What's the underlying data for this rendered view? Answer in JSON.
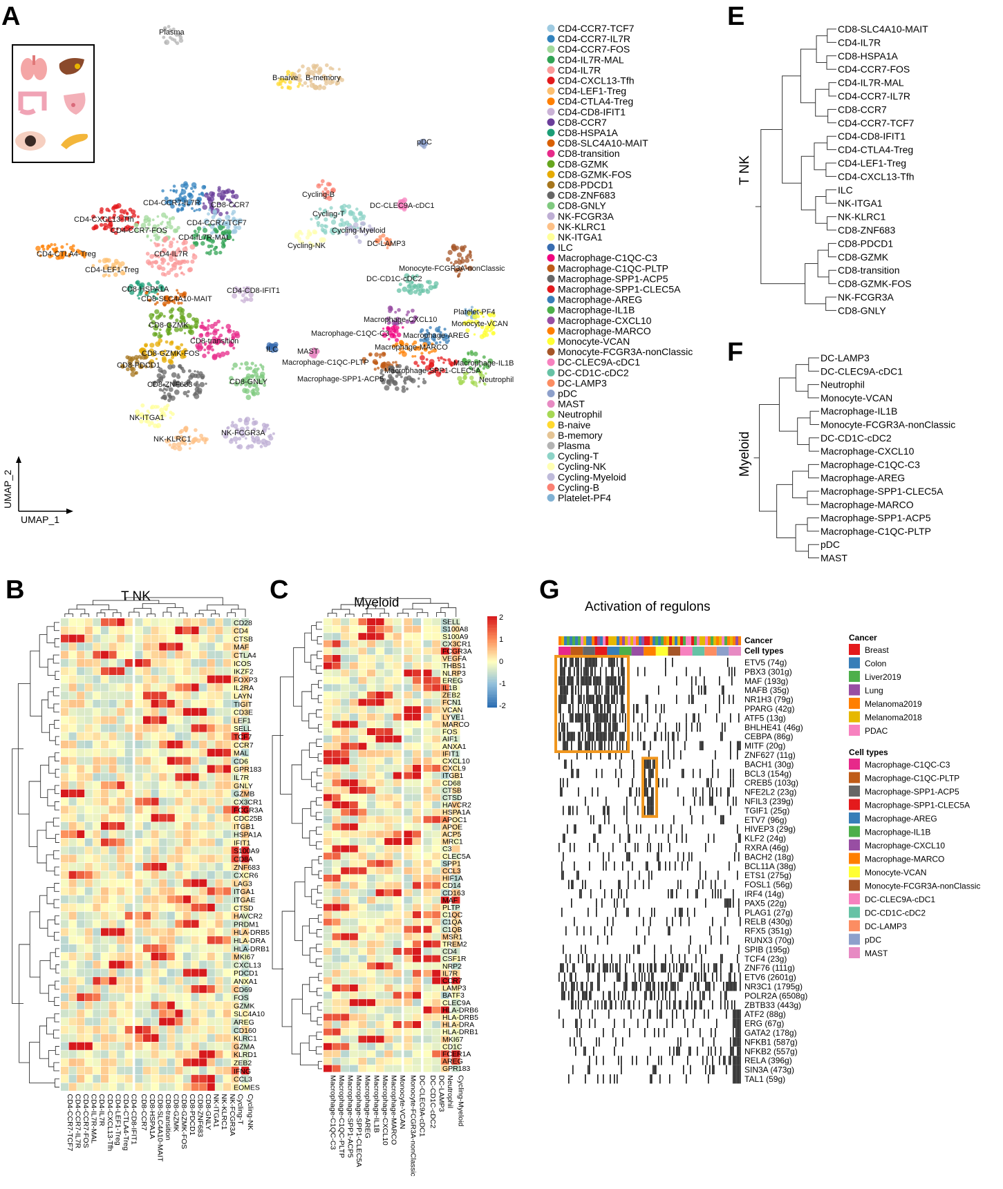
{
  "panels": {
    "A": {
      "letter": "A",
      "axis_x": "UMAP_1",
      "axis_y": "UMAP_2",
      "inset_icons": [
        "lung-icon",
        "liver-icon",
        "colon-icon",
        "breast-icon",
        "melanoma-icon",
        "pancreas-icon"
      ]
    },
    "B": {
      "letter": "B",
      "title": "T NK"
    },
    "C": {
      "letter": "C",
      "title": "Myeloid"
    },
    "E": {
      "letter": "E",
      "group": "T NK"
    },
    "F": {
      "letter": "F",
      "group": "Myeloid"
    },
    "G": {
      "letter": "G",
      "title": "Activation of regulons"
    }
  },
  "chart_data": [
    {
      "panel": "A",
      "type": "scatter",
      "title": "",
      "xlabel": "UMAP_1",
      "ylabel": "UMAP_2",
      "legend": [
        {
          "name": "CD4-CCR7-TCF7",
          "color": "#9ecae1"
        },
        {
          "name": "CD4-CCR7-IL7R",
          "color": "#3182bd"
        },
        {
          "name": "CD4-CCR7-FOS",
          "color": "#a1d99b"
        },
        {
          "name": "CD4-IL7R-MAL",
          "color": "#31a354"
        },
        {
          "name": "CD4-IL7R",
          "color": "#fb9a99"
        },
        {
          "name": "CD4-CXCL13-Tfh",
          "color": "#e31a1c"
        },
        {
          "name": "CD4-LEF1-Treg",
          "color": "#fdbf6f"
        },
        {
          "name": "CD4-CTLA4-Treg",
          "color": "#ff7f00"
        },
        {
          "name": "CD4-CD8-IFIT1",
          "color": "#cab2d6"
        },
        {
          "name": "CD8-CCR7",
          "color": "#6a3d9a"
        },
        {
          "name": "CD8-HSPA1A",
          "color": "#1b9e77"
        },
        {
          "name": "CD8-SLC4A10-MAIT",
          "color": "#d95f02"
        },
        {
          "name": "CD8-transition",
          "color": "#e7298a"
        },
        {
          "name": "CD8-GZMK",
          "color": "#66a61e"
        },
        {
          "name": "CD8-GZMK-FOS",
          "color": "#e6ab02"
        },
        {
          "name": "CD8-PDCD1",
          "color": "#a6761d"
        },
        {
          "name": "CD8-ZNF683",
          "color": "#666666"
        },
        {
          "name": "CD8-GNLY",
          "color": "#7fc97f"
        },
        {
          "name": "NK-FCGR3A",
          "color": "#beaed4"
        },
        {
          "name": "NK-KLRC1",
          "color": "#fdc086"
        },
        {
          "name": "NK-ITGA1",
          "color": "#ffff99"
        },
        {
          "name": "ILC",
          "color": "#386cb0"
        },
        {
          "name": "Macrophage-C1QC-C3",
          "color": "#f0027f"
        },
        {
          "name": "Macrophage-C1QC-PLTP",
          "color": "#bf5b17"
        },
        {
          "name": "Macrophage-SPP1-ACP5",
          "color": "#666666"
        },
        {
          "name": "Macrophage-SPP1-CLEC5A",
          "color": "#e41a1c"
        },
        {
          "name": "Macrophage-AREG",
          "color": "#377eb8"
        },
        {
          "name": "Macrophage-IL1B",
          "color": "#4daf4a"
        },
        {
          "name": "Macrophage-CXCL10",
          "color": "#984ea3"
        },
        {
          "name": "Macrophage-MARCO",
          "color": "#ff7f00"
        },
        {
          "name": "Monocyte-VCAN",
          "color": "#ffff33"
        },
        {
          "name": "Monocyte-FCGR3A-nonClassic",
          "color": "#a65628"
        },
        {
          "name": "DC-CLEC9A-cDC1",
          "color": "#f781bf"
        },
        {
          "name": "DC-CD1C-cDC2",
          "color": "#66c2a5"
        },
        {
          "name": "DC-LAMP3",
          "color": "#fc8d62"
        },
        {
          "name": "pDC",
          "color": "#8da0cb"
        },
        {
          "name": "MAST",
          "color": "#e78ac3"
        },
        {
          "name": "Neutrophil",
          "color": "#a6d854"
        },
        {
          "name": "B-naive",
          "color": "#ffd92f"
        },
        {
          "name": "B-memory",
          "color": "#e5c494"
        },
        {
          "name": "Plasma",
          "color": "#b3b3b3"
        },
        {
          "name": "Cycling-T",
          "color": "#8dd3c7"
        },
        {
          "name": "Cycling-NK",
          "color": "#ffffb3"
        },
        {
          "name": "Cycling-Myeloid",
          "color": "#bebada"
        },
        {
          "name": "Cycling-B",
          "color": "#fb8072"
        },
        {
          "name": "Platelet-PF4",
          "color": "#80b1d3"
        }
      ],
      "cluster_labels": [
        "Plasma",
        "B-naive",
        "B-memory",
        "pDC",
        "CD4-CCR7-IL7R",
        "CD8-CCR7",
        "CD4-CXCL13-Tfh",
        "CD4-CCR7-TCF7",
        "CD4-CCR7-FOS",
        "CD4-IL7R-MAL",
        "CD4-CTLA4-Treg",
        "CD4-IL7R",
        "CD4-LEF1-Treg",
        "CD8-HSPA1A",
        "CD8-SLC4A10-MAIT",
        "CD4-CD8-IFIT1",
        "CD8-GZMK",
        "CD8-transition",
        "CD8-GZMK-FOS",
        "CD8-PDCD1",
        "CD8-ZNF683",
        "CD8-GNLY",
        "NK-ITGA1",
        "NK-KLRC1",
        "NK-FCGR3A",
        "ILC",
        "MAST",
        "Cycling-B",
        "DC-CLEC9A-cDC1",
        "Cycling-T",
        "Cycling-Myeloid",
        "Cycling-NK",
        "DC-LAMP3",
        "Monocyte-FCGR3A-nonClassic",
        "DC-CD1C-cDC2",
        "Platelet-PF4",
        "Macrophage-CXCL10",
        "Monocyte-VCAN",
        "Macrophage-C1QC-C3",
        "Macrophage-AREG",
        "Macrophage-MARCO",
        "Macrophage-C1QC-PLTP",
        "Macrophage-IL1B",
        "Macrophage-SPP1-CLEC5A",
        "Neutrophil",
        "Macrophage-SPP1-ACP5"
      ]
    },
    {
      "panel": "B",
      "type": "heatmap",
      "title": "T NK",
      "columns": [
        "CD4-CCR7-TCF7",
        "CD4-CCR7-IL7R",
        "CD4-CCR7-FOS",
        "CD4-IL7R-MAL",
        "CD4-IL7R",
        "CD4-CXCL13-Tfh",
        "CD4-LEF1-Treg",
        "CD4-CTLA4-Treg",
        "CD4-CD8-IFIT1",
        "CD8-CCR7",
        "CD8-HSPA1A",
        "CD8-SLC4A10-MAIT",
        "CD8-transition",
        "CD8-GZMK",
        "CD8-GZMK-FOS",
        "CD8-PDCD1",
        "CD8-ZNF683",
        "CD8-GNLY",
        "NK-ITGA1",
        "NK-KLRC1",
        "NK-FCGR3A",
        "Cycling-T",
        "Cycling-NK"
      ],
      "rows": [
        "CD28",
        "CD4",
        "CTSB",
        "MAF",
        "CTLA4",
        "ICOS",
        "IKZF2",
        "FOXP3",
        "IL2RA",
        "LAYN",
        "TIGIT",
        "CD3E",
        "LEF1",
        "SELL",
        "TCF7",
        "CCR7",
        "MAL",
        "CD6",
        "GPR183",
        "IL7R",
        "GNLY",
        "GZMB",
        "CX3CR1",
        "FCGR3A",
        "CDC25B",
        "ITGB1",
        "HSPA1A",
        "IFIT1",
        "S100A9",
        "CD8A",
        "ZNF683",
        "CXCR6",
        "LAG3",
        "ITGA1",
        "ITGAE",
        "CTSD",
        "HAVCR2",
        "PRDM1",
        "HLA-DRB5",
        "HLA-DRA",
        "HLA-DRB1",
        "MKI67",
        "CXCL13",
        "PDCD1",
        "ANXA1",
        "CD69",
        "FOS",
        "GZMK",
        "SLC4A10",
        "AREG",
        "CD160",
        "KLRC1",
        "GZMA",
        "KLRD1",
        "ZEB2",
        "IFNG",
        "CCL3",
        "EOMES"
      ]
    },
    {
      "panel": "C",
      "type": "heatmap",
      "title": "Myeloid",
      "columns": [
        "Macrophage-C1QC-C3",
        "Macrophage-C1QC-PLTP",
        "Macrophage-SPP1-ACP5",
        "Macrophage-SPP1-CLEC5A",
        "Macrophage-AREG",
        "Macrophage-IL1B",
        "Macrophage-CXCL10",
        "Macrophage-MARCO",
        "Monocyte-VCAN",
        "Monocyte-FCGR3A-nonClassic",
        "DC-CLEC9A-cDC1",
        "DC-CD1C-cDC2",
        "DC-LAMP3",
        "Neutrophil",
        "Cycling-Myeloid"
      ],
      "rows": [
        "SELL",
        "S100A8",
        "S100A9",
        "CX3CR1",
        "FCGR3A",
        "VEGFA",
        "THBS1",
        "NLRP3",
        "EREG",
        "IL1B",
        "ZEB2",
        "FCN1",
        "VCAN",
        "LYVE1",
        "MARCO",
        "FOS",
        "AIF1",
        "ANXA1",
        "IFIT1",
        "CXCL10",
        "CXCL9",
        "ITGB1",
        "CD68",
        "CTSB",
        "CTSD",
        "HAVCR2",
        "HSPA1A",
        "APOC1",
        "APOE",
        "ACP5",
        "MRC1",
        "C3",
        "CLEC5A",
        "SPP1",
        "CCL3",
        "HIF1A",
        "CD14",
        "CD163",
        "MAF",
        "PLTP",
        "C1QC",
        "C1QA",
        "C1QB",
        "MSR1",
        "TREM2",
        "CD4",
        "CSF1R",
        "NRP2",
        "IL7R",
        "CCR7",
        "LAMP3",
        "BATF3",
        "CLEC9A",
        "HLA-DRB6",
        "HLA-DRB5",
        "HLA-DRA",
        "HLA-DRB1",
        "MKI67",
        "CD1C",
        "FCER1A",
        "AREG",
        "GPR183"
      ],
      "colorbar": {
        "ticks": [
          "2",
          "1",
          "0",
          "-1",
          "-2"
        ],
        "range": [
          -2,
          2
        ]
      }
    },
    {
      "panel": "E",
      "type": "dendrogram",
      "group_label": "T NK",
      "leaves": [
        "CD8-SLC4A10-MAIT",
        "CD4-IL7R",
        "CD8-HSPA1A",
        "CD4-CCR7-FOS",
        "CD4-IL7R-MAL",
        "CD4-CCR7-IL7R",
        "CD8-CCR7",
        "CD4-CCR7-TCF7",
        "CD4-CD8-IFIT1",
        "CD4-CTLA4-Treg",
        "CD4-LEF1-Treg",
        "CD4-CXCL13-Tfh",
        "ILC",
        "NK-ITGA1",
        "NK-KLRC1",
        "CD8-ZNF683",
        "CD8-PDCD1",
        "CD8-GZMK",
        "CD8-transition",
        "CD8-GZMK-FOS",
        "NK-FCGR3A",
        "CD8-GNLY"
      ]
    },
    {
      "panel": "F",
      "type": "dendrogram",
      "group_label": "Myeloid",
      "leaves": [
        "DC-LAMP3",
        "DC-CLEC9A-cDC1",
        "Neutrophil",
        "Monocyte-VCAN",
        "Macrophage-IL1B",
        "Monocyte-FCGR3A-nonClassic",
        "DC-CD1C-cDC2",
        "Macrophage-CXCL10",
        "Macrophage-C1QC-C3",
        "Macrophage-AREG",
        "Macrophage-SPP1-CLEC5A",
        "Macrophage-MARCO",
        "Macrophage-SPP1-ACP5",
        "Macrophage-C1QC-PLTP",
        "pDC",
        "MAST"
      ]
    },
    {
      "panel": "G",
      "type": "heatmap",
      "title": "Activation of regulons",
      "annotation_rows": [
        "Cancer",
        "Cell types"
      ],
      "regulons": [
        "ETV5 (74g)",
        "PBX3 (301g)",
        "MAF (193g)",
        "MAFB (35g)",
        "NR1H3 (79g)",
        "PPARG (42g)",
        "ATF5 (13g)",
        "BHLHE41 (46g)",
        "CEBPA (86g)",
        "MITF (20g)",
        "ZNF627 (11g)",
        "BACH1 (30g)",
        "BCL3 (154g)",
        "CREB5 (103g)",
        "NFE2L2 (23g)",
        "NFIL3 (239g)",
        "TGIF1 (25g)",
        "ETV7 (96g)",
        "HIVEP3 (29g)",
        "KLF2 (24g)",
        "RXRA (46g)",
        "BACH2 (18g)",
        "BCL11A (38g)",
        "ETS1 (275g)",
        "FOSL1 (56g)",
        "IRF4 (14g)",
        "PAX5 (22g)",
        "PLAG1 (27g)",
        "RELB (430g)",
        "RFX5 (351g)",
        "RUNX3 (70g)",
        "SPIB (195g)",
        "TCF4 (23g)",
        "ZNF76 (111g)",
        "ETV6 (2601g)",
        "NR3C1 (1795g)",
        "POLR2A (6508g)",
        "ZBTB33 (443g)",
        "ATF2 (88g)",
        "ERG (67g)",
        "GATA2 (178g)",
        "NFKB1 (587g)",
        "NFKB2 (557g)",
        "RELA (396g)",
        "SIN3A (473g)",
        "TAL1 (59g)"
      ],
      "legend_cancer_title": "Cancer",
      "legend_cancer": [
        {
          "name": "Breast",
          "color": "#e41a1c"
        },
        {
          "name": "Colon",
          "color": "#377eb8"
        },
        {
          "name": "Liver2019",
          "color": "#4daf4a"
        },
        {
          "name": "Lung",
          "color": "#984ea3"
        },
        {
          "name": "Melanoma2019",
          "color": "#ff7f00"
        },
        {
          "name": "Melanoma2018",
          "color": "#e6b800"
        },
        {
          "name": "PDAC",
          "color": "#f781bf"
        }
      ],
      "legend_celltypes_title": "Cell types",
      "legend_celltypes": [
        {
          "name": "Macrophage-C1QC-C3",
          "color": "#e7298a"
        },
        {
          "name": "Macrophage-C1QC-PLTP",
          "color": "#bf5b17"
        },
        {
          "name": "Macrophage-SPP1-ACP5",
          "color": "#666666"
        },
        {
          "name": "Macrophage-SPP1-CLEC5A",
          "color": "#e41a1c"
        },
        {
          "name": "Macrophage-AREG",
          "color": "#377eb8"
        },
        {
          "name": "Macrophage-IL1B",
          "color": "#4daf4a"
        },
        {
          "name": "Macrophage-CXCL10",
          "color": "#984ea3"
        },
        {
          "name": "Macrophage-MARCO",
          "color": "#ff7f00"
        },
        {
          "name": "Monocyte-VCAN",
          "color": "#ffff33"
        },
        {
          "name": "Monocyte-FCGR3A-nonClassic",
          "color": "#a65628"
        },
        {
          "name": "DC-CLEC9A-cDC1",
          "color": "#f781bf"
        },
        {
          "name": "DC-CD1C-cDC2",
          "color": "#66c2a5"
        },
        {
          "name": "DC-LAMP3",
          "color": "#fc8d62"
        },
        {
          "name": "pDC",
          "color": "#8da0cb"
        },
        {
          "name": "MAST",
          "color": "#e78ac3"
        }
      ]
    }
  ]
}
